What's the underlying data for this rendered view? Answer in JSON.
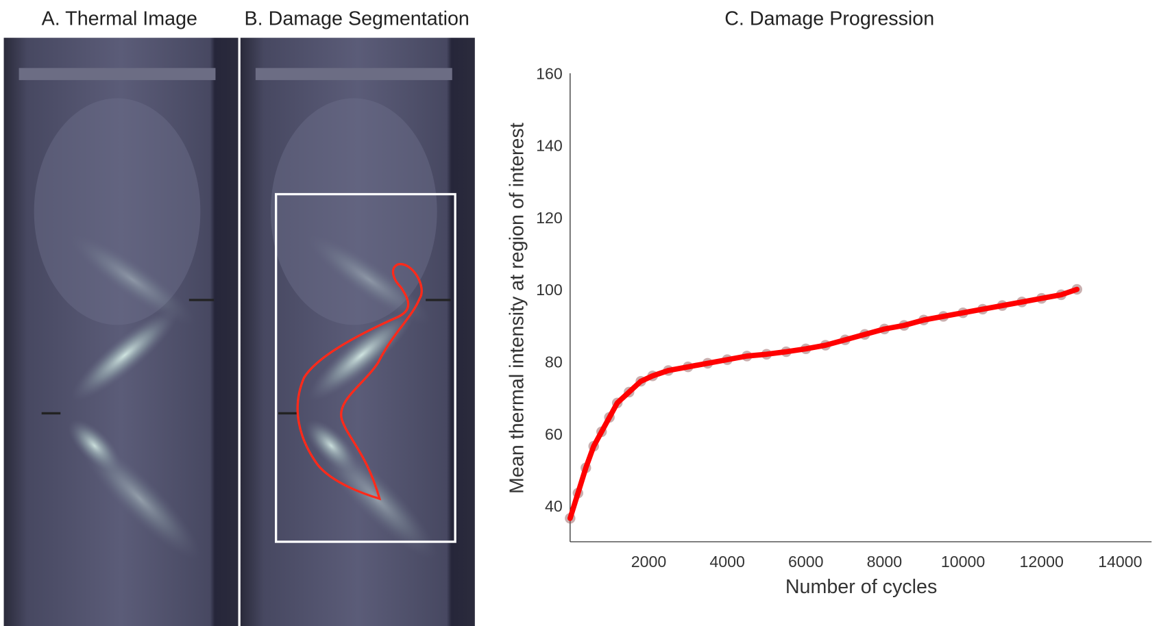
{
  "panels": {
    "a_title": "A. Thermal Image",
    "b_title": "B. Damage Segmentation"
  },
  "chart_data": {
    "type": "line",
    "title": "C. Damage Progression",
    "x_label": "Number of cycles",
    "y_label": "Mean thermal intensity at region of interest",
    "x": [
      0,
      200,
      400,
      600,
      800,
      1000,
      1200,
      1500,
      1800,
      2100,
      2500,
      3000,
      3500,
      4000,
      4500,
      5000,
      5500,
      6000,
      6500,
      7000,
      7500,
      8000,
      8500,
      9000,
      9500,
      10000,
      10500,
      11000,
      11500,
      12000,
      12500,
      12900
    ],
    "series": [
      {
        "color": "#ff0000",
        "values": [
          37,
          44,
          51,
          57,
          61,
          65,
          69,
          72,
          75,
          76.5,
          78,
          79,
          80,
          81,
          82,
          82.5,
          83.2,
          84,
          85,
          86.5,
          88,
          89.5,
          90.5,
          92,
          93,
          94,
          95,
          96,
          97,
          98,
          99,
          100.5
        ]
      }
    ],
    "xlim": [
      0,
      14800
    ],
    "ylim": [
      30.5,
      160
    ],
    "xticks": [
      2000,
      4000,
      6000,
      8000,
      10000,
      12000,
      14000
    ],
    "yticks": [
      40,
      60,
      80,
      100,
      120,
      140,
      160
    ],
    "grid": false
  }
}
